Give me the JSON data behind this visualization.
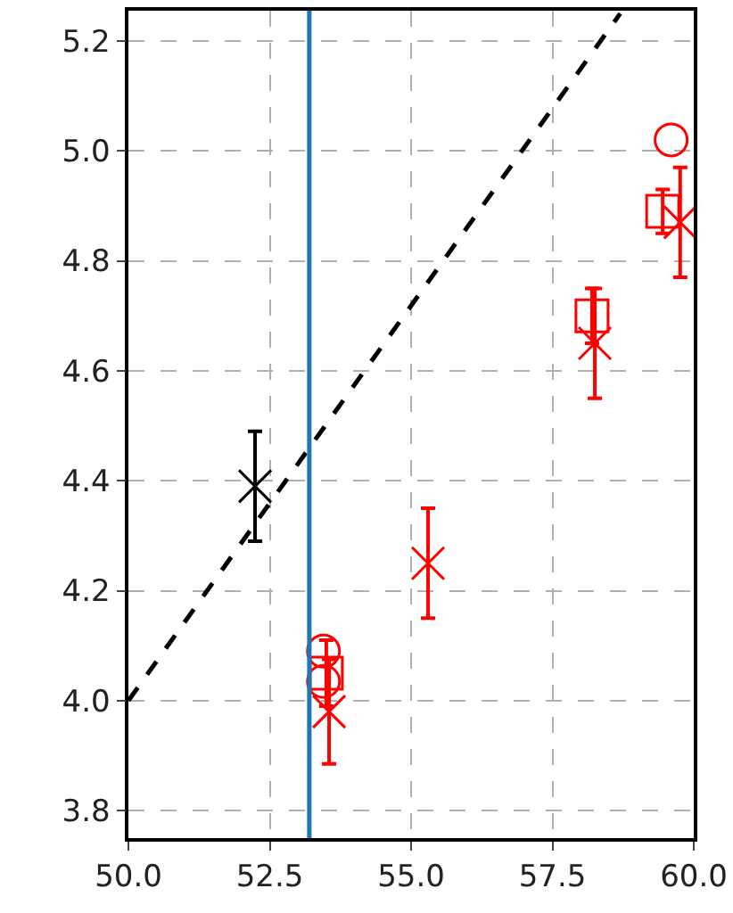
{
  "chart_data": {
    "type": "scatter",
    "series": [
      {
        "marker": "cross",
        "color": "#000000",
        "x": [
          52.24
        ],
        "values": [
          4.39
        ],
        "errors": [
          0.1
        ]
      },
      {
        "marker": "cross",
        "color": "#ff0000",
        "x": [
          53.55,
          55.3,
          58.25,
          59.76
        ],
        "values": [
          3.98,
          4.25,
          4.65,
          4.87
        ],
        "errors": [
          0.095,
          0.1,
          0.1,
          0.1
        ]
      },
      {
        "marker": "square",
        "color": "#ff0000",
        "x": [
          53.5,
          58.2,
          59.45
        ],
        "values": [
          4.05,
          4.7,
          4.89
        ],
        "errors": [
          0.06,
          0.05,
          0.04
        ]
      },
      {
        "marker": "circle",
        "color": "#ff0000",
        "x": [
          53.45,
          53.45,
          59.6
        ],
        "values": [
          4.09,
          4.035,
          5.02
        ]
      },
      {
        "type": "line",
        "line_style": "dashed",
        "color": "#000000",
        "x": [
          50,
          58.7
        ],
        "values": [
          4.0,
          5.25
        ]
      }
    ],
    "ref_lines": [
      {
        "axis": "x",
        "value": 53.2,
        "color": "#1f77b4"
      }
    ],
    "xlim": [
      50,
      60
    ],
    "xticks": [
      {
        "value": 50,
        "label": "50.0"
      },
      52.5,
      {
        "value": 55,
        "label": "55.0"
      },
      57.5,
      {
        "value": 60,
        "label": "60.0"
      }
    ],
    "ylim": [
      3.75,
      5.255
    ],
    "yticks": [
      3.8,
      {
        "value": 4,
        "label": "4.0"
      },
      4.2,
      4.4,
      4.6,
      4.8,
      {
        "value": 5,
        "label": "5.0"
      },
      5.2
    ],
    "grid": true
  }
}
